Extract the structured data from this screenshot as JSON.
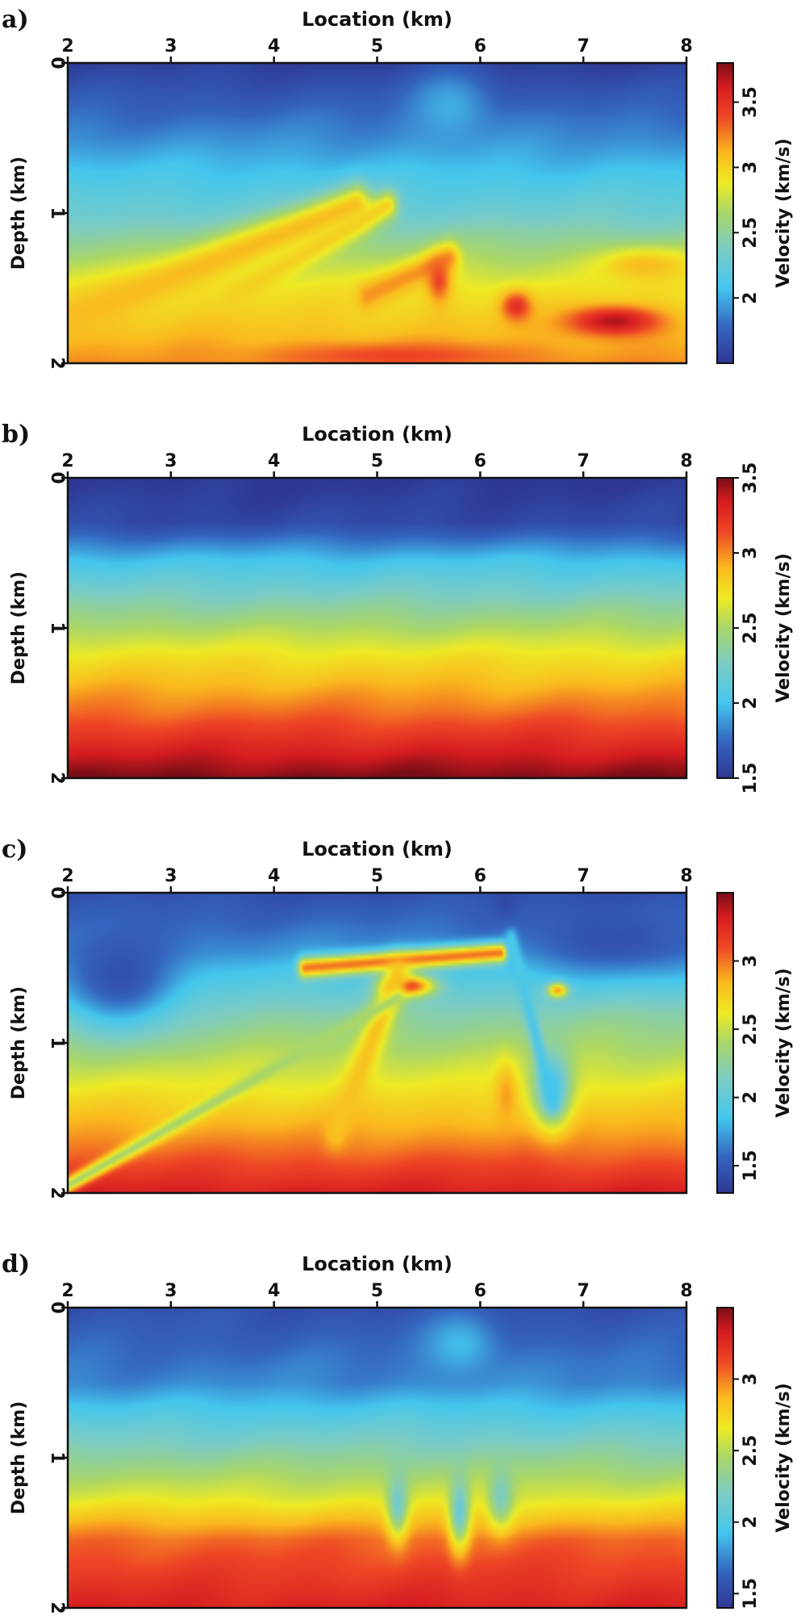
{
  "figure": {
    "chart_data": [
      {
        "type": "heatmap",
        "panel_label": "a)",
        "title": "",
        "xlabel": "Location (km)",
        "ylabel": "Depth (km)",
        "colorbar_label": "Velocity (km/s)",
        "x_ticks": [
          "2",
          "3",
          "4",
          "5",
          "6",
          "7",
          "8"
        ],
        "y_ticks": [
          "0",
          "1",
          "2"
        ],
        "xlim": [
          2,
          8
        ],
        "ylim": [
          0,
          2
        ],
        "colorbar_ticks": [
          "2",
          "2.5",
          "3",
          "3.5"
        ],
        "colorbar_tick_values": [
          2,
          2.5,
          3,
          3.5
        ],
        "vlim": [
          1.5,
          3.8
        ],
        "background_profile": [
          [
            0,
            1.55
          ],
          [
            0.5,
            1.9
          ],
          [
            1.0,
            2.3
          ],
          [
            1.5,
            2.9
          ],
          [
            2.0,
            3.2
          ]
        ],
        "features": [
          {
            "kind": "band",
            "x0": 2.0,
            "y0": 1.7,
            "x1": 4.8,
            "y1": 0.95,
            "width": 0.14,
            "value": 3.1
          },
          {
            "kind": "band",
            "x0": 3.6,
            "y0": 1.55,
            "x1": 5.1,
            "y1": 0.95,
            "width": 0.1,
            "value": 3.0
          },
          {
            "kind": "band",
            "x0": 4.9,
            "y0": 1.55,
            "x1": 5.7,
            "y1": 1.3,
            "width": 0.1,
            "value": 3.2
          },
          {
            "kind": "blob",
            "x": 5.6,
            "y": 1.45,
            "rx": 0.12,
            "ry": 0.15,
            "value": 3.4
          },
          {
            "kind": "blob",
            "x": 6.35,
            "y": 1.62,
            "rx": 0.15,
            "ry": 0.1,
            "value": 3.5
          },
          {
            "kind": "blob",
            "x": 7.3,
            "y": 1.72,
            "rx": 0.45,
            "ry": 0.1,
            "value": 3.7
          },
          {
            "kind": "blob",
            "x": 7.6,
            "y": 1.35,
            "rx": 0.5,
            "ry": 0.12,
            "value": 3.1
          },
          {
            "kind": "blob",
            "x": 5.2,
            "y": 1.95,
            "rx": 1.2,
            "ry": 0.08,
            "value": 3.4
          },
          {
            "kind": "blob",
            "x": 5.7,
            "y": 0.3,
            "rx": 0.4,
            "ry": 0.25,
            "value": 2.0
          }
        ]
      },
      {
        "type": "heatmap",
        "panel_label": "b)",
        "title": "",
        "xlabel": "Location (km)",
        "ylabel": "Depth (km)",
        "colorbar_label": "Velocity (km/s)",
        "x_ticks": [
          "2",
          "3",
          "4",
          "5",
          "6",
          "7",
          "8"
        ],
        "y_ticks": [
          "0",
          "1",
          "2"
        ],
        "xlim": [
          2,
          8
        ],
        "ylim": [
          0,
          2
        ],
        "colorbar_ticks": [
          "1.5",
          "2",
          "2.5",
          "3",
          "3.5"
        ],
        "colorbar_tick_values": [
          1.5,
          2,
          2.5,
          3,
          3.5
        ],
        "vlim": [
          1.5,
          3.5
        ],
        "background_profile": [
          [
            0,
            1.5
          ],
          [
            0.3,
            1.6
          ],
          [
            0.55,
            2.0
          ],
          [
            0.9,
            2.4
          ],
          [
            1.2,
            2.75
          ],
          [
            1.55,
            3.05
          ],
          [
            2.0,
            3.5
          ]
        ],
        "features": []
      },
      {
        "type": "heatmap",
        "panel_label": "c)",
        "title": "",
        "xlabel": "Location (km)",
        "ylabel": "Depth (km)",
        "colorbar_label": "Velocity (km/s)",
        "x_ticks": [
          "2",
          "3",
          "4",
          "5",
          "6",
          "7",
          "8"
        ],
        "y_ticks": [
          "0",
          "1",
          "2"
        ],
        "xlim": [
          2,
          8
        ],
        "ylim": [
          0,
          2
        ],
        "colorbar_ticks": [
          "1.5",
          "2",
          "2.5",
          "3"
        ],
        "colorbar_tick_values": [
          1.5,
          2,
          2.5,
          3
        ],
        "vlim": [
          1.3,
          3.5
        ],
        "background_profile": [
          [
            0,
            1.45
          ],
          [
            0.4,
            1.7
          ],
          [
            0.8,
            2.2
          ],
          [
            1.2,
            2.55
          ],
          [
            1.6,
            2.9
          ],
          [
            2.0,
            3.3
          ]
        ],
        "features": [
          {
            "kind": "blob",
            "x": 2.5,
            "y": 0.55,
            "rx": 0.6,
            "ry": 0.35,
            "value": 1.45
          },
          {
            "kind": "blob",
            "x": 7.3,
            "y": 0.3,
            "rx": 0.8,
            "ry": 0.22,
            "value": 1.45
          },
          {
            "kind": "band",
            "x0": 4.3,
            "y0": 0.5,
            "x1": 6.2,
            "y1": 0.4,
            "width": 0.07,
            "value": 3.0
          },
          {
            "kind": "blob",
            "x": 5.3,
            "y": 0.62,
            "rx": 0.25,
            "ry": 0.07,
            "value": 3.2
          },
          {
            "kind": "band",
            "x0": 5.2,
            "y0": 0.55,
            "x1": 4.6,
            "y1": 1.6,
            "width": 0.12,
            "value": 2.8
          },
          {
            "kind": "band",
            "x0": 2.0,
            "y0": 1.95,
            "x1": 5.2,
            "y1": 0.7,
            "width": 0.05,
            "value": 2.4
          },
          {
            "kind": "band",
            "x0": 6.3,
            "y0": 0.3,
            "x1": 6.7,
            "y1": 1.4,
            "width": 0.06,
            "value": 1.9
          },
          {
            "kind": "blob",
            "x": 6.7,
            "y": 1.3,
            "rx": 0.18,
            "ry": 0.25,
            "value": 1.85
          },
          {
            "kind": "blob",
            "x": 6.25,
            "y": 1.35,
            "rx": 0.12,
            "ry": 0.22,
            "value": 2.9
          },
          {
            "kind": "blob",
            "x": 6.75,
            "y": 0.65,
            "rx": 0.1,
            "ry": 0.05,
            "value": 2.9
          },
          {
            "kind": "blob",
            "x": 6.25,
            "y": 0.05,
            "rx": 0.1,
            "ry": 0.1,
            "value": 1.4
          }
        ]
      },
      {
        "type": "heatmap",
        "panel_label": "d)",
        "title": "",
        "xlabel": "Location (km)",
        "ylabel": "Depth (km)",
        "colorbar_label": "Velocity (km/s)",
        "x_ticks": [
          "2",
          "3",
          "4",
          "5",
          "6",
          "7",
          "8"
        ],
        "y_ticks": [
          "0",
          "1",
          "2"
        ],
        "xlim": [
          2,
          8
        ],
        "ylim": [
          0,
          2
        ],
        "colorbar_ticks": [
          "1.5",
          "2",
          "2.5",
          "3"
        ],
        "colorbar_tick_values": [
          1.5,
          2,
          2.5,
          3
        ],
        "vlim": [
          1.4,
          3.5
        ],
        "background_profile": [
          [
            0,
            1.55
          ],
          [
            0.5,
            1.75
          ],
          [
            0.85,
            2.15
          ],
          [
            1.25,
            2.6
          ],
          [
            1.55,
            3.05
          ],
          [
            2.0,
            3.3
          ]
        ],
        "features": [
          {
            "kind": "blob",
            "x": 5.2,
            "y": 1.3,
            "rx": 0.1,
            "ry": 0.22,
            "value": 2.15
          },
          {
            "kind": "blob",
            "x": 5.8,
            "y": 1.35,
            "rx": 0.1,
            "ry": 0.25,
            "value": 2.1
          },
          {
            "kind": "blob",
            "x": 6.2,
            "y": 1.25,
            "rx": 0.12,
            "ry": 0.2,
            "value": 2.2
          },
          {
            "kind": "blob",
            "x": 5.8,
            "y": 0.25,
            "rx": 0.35,
            "ry": 0.2,
            "value": 1.9
          }
        ]
      }
    ]
  }
}
